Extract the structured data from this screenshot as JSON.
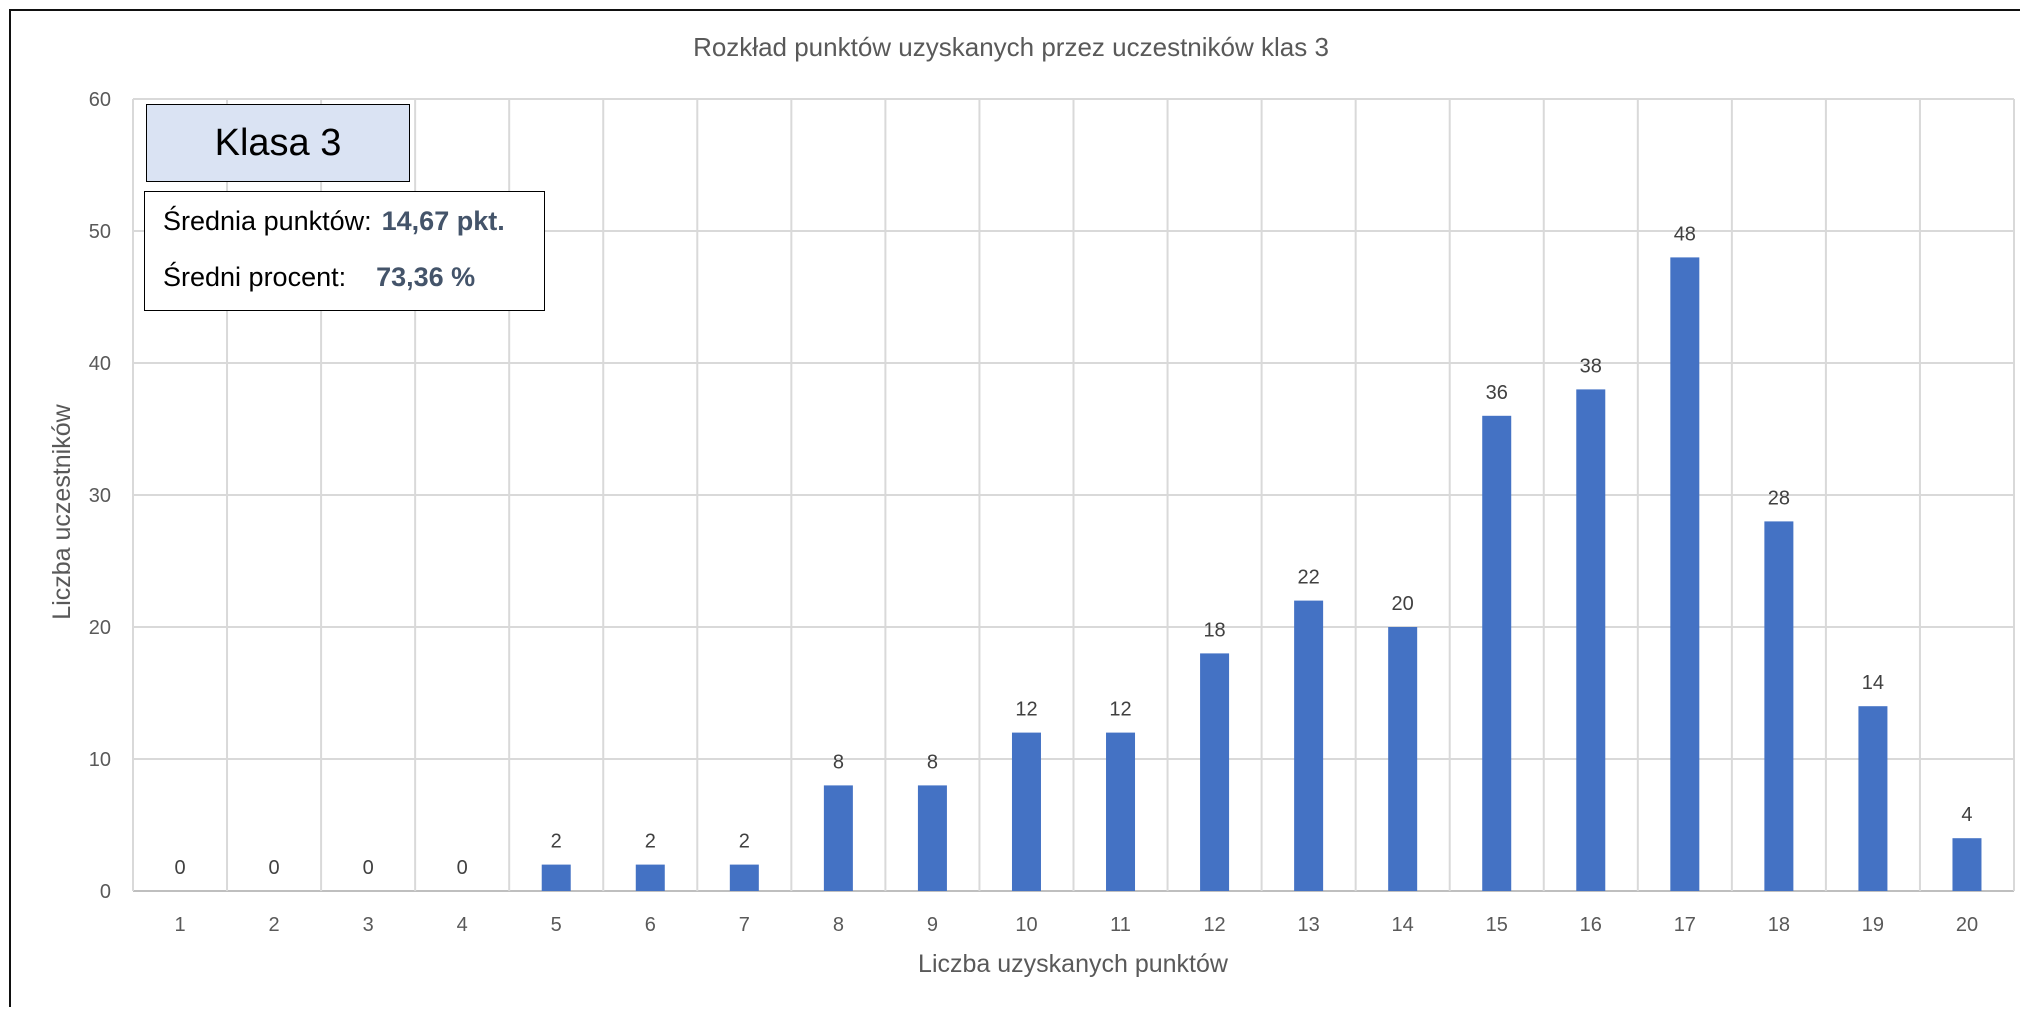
{
  "chart_data": {
    "type": "bar",
    "title": "Rozkład punktów uzyskanych przez uczestników klas 3",
    "xlabel": "Liczba uzyskanych punktów",
    "ylabel": "Liczba uczestników",
    "categories": [
      "1",
      "2",
      "3",
      "4",
      "5",
      "6",
      "7",
      "8",
      "9",
      "10",
      "11",
      "12",
      "13",
      "14",
      "15",
      "16",
      "17",
      "18",
      "19",
      "20"
    ],
    "values": [
      0,
      0,
      0,
      0,
      2,
      2,
      2,
      8,
      8,
      12,
      12,
      18,
      22,
      20,
      36,
      38,
      48,
      28,
      14,
      4
    ],
    "ylim": [
      0,
      60
    ],
    "yticks": [
      0,
      10,
      20,
      30,
      40,
      50,
      60
    ],
    "grid": true,
    "data_labels": true,
    "bar_color": "#4472c4",
    "grid_color": "#d9d9d9"
  },
  "info_box": {
    "class_label": "Klasa 3",
    "class_box_color": "#dae3f3",
    "avg_points_label": "Średnia punktów:",
    "avg_points_value": "14,67 pkt.",
    "avg_percent_label": "Średni procent:",
    "avg_percent_value": "73,36 %",
    "value_color": "#44546a"
  }
}
